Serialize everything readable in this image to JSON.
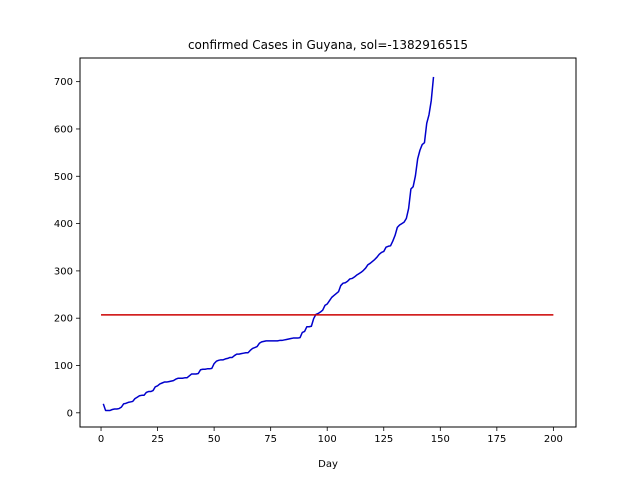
{
  "chart_data": {
    "type": "line",
    "title": "confirmed Cases in Guyana, sol=-1382916515",
    "xlabel": "Day",
    "ylabel": "",
    "xlim": [
      -9.3,
      210.0
    ],
    "ylim": [
      -30,
      750
    ],
    "xticks": [
      0,
      25,
      50,
      75,
      100,
      125,
      150,
      175,
      200
    ],
    "yticks": [
      0,
      100,
      200,
      300,
      400,
      500,
      600,
      700
    ],
    "grid": false,
    "series": [
      {
        "color": "#0000cc",
        "x": [
          1,
          2,
          3,
          4,
          5,
          6,
          7,
          8,
          9,
          10,
          11,
          12,
          13,
          14,
          15,
          16,
          17,
          18,
          19,
          20,
          21,
          22,
          23,
          24,
          25,
          26,
          27,
          28,
          29,
          30,
          31,
          32,
          33,
          34,
          35,
          36,
          37,
          38,
          39,
          40,
          41,
          42,
          43,
          44,
          45,
          46,
          47,
          48,
          49,
          50,
          51,
          52,
          53,
          54,
          55,
          56,
          57,
          58,
          59,
          60,
          61,
          62,
          63,
          64,
          65,
          66,
          67,
          68,
          69,
          70,
          71,
          72,
          73,
          74,
          75,
          76,
          77,
          78,
          79,
          80,
          81,
          82,
          83,
          84,
          85,
          86,
          87,
          88,
          89,
          90,
          91,
          92,
          93,
          94,
          95,
          96,
          97,
          98,
          99,
          100,
          101,
          102,
          103,
          104,
          105,
          106,
          107,
          108,
          109,
          110,
          111,
          112,
          113,
          114,
          115,
          116,
          117,
          118,
          119,
          120,
          121,
          122,
          123,
          124,
          125,
          126,
          127,
          128,
          129,
          130,
          131,
          132,
          133,
          134,
          135,
          136,
          137,
          138,
          139,
          140,
          141,
          142,
          143,
          144,
          145,
          146,
          147
        ],
        "y": [
          19,
          5,
          5,
          5,
          7,
          8,
          8,
          9,
          12,
          19,
          20,
          22,
          23,
          24,
          30,
          33,
          36,
          37,
          37,
          43,
          45,
          45,
          47,
          55,
          57,
          61,
          63,
          65,
          65,
          66,
          67,
          68,
          71,
          73,
          73,
          73,
          74,
          74,
          78,
          82,
          82,
          82,
          83,
          91,
          92,
          92,
          93,
          93,
          94,
          104,
          109,
          111,
          112,
          112,
          114,
          115,
          117,
          117,
          121,
          124,
          124,
          125,
          126,
          127,
          127,
          132,
          136,
          138,
          140,
          147,
          150,
          151,
          152,
          152,
          152,
          152,
          152,
          152,
          153,
          153,
          154,
          155,
          156,
          157,
          158,
          158,
          158,
          159,
          170,
          172,
          182,
          182,
          183,
          199,
          208,
          210,
          213,
          217,
          227,
          230,
          237,
          244,
          248,
          252,
          256,
          269,
          274,
          275,
          278,
          283,
          284,
          287,
          291,
          294,
          297,
          301,
          306,
          313,
          316,
          320,
          324,
          329,
          335,
          339,
          341,
          350,
          352,
          353,
          363,
          375,
          392,
          397,
          400,
          403,
          411,
          432,
          473,
          478,
          501,
          537,
          555,
          567,
          571,
          612,
          630,
          660,
          710
        ]
      },
      {
        "color": "#cc0000",
        "x": [
          0,
          200
        ],
        "y": [
          207,
          207
        ]
      }
    ]
  }
}
